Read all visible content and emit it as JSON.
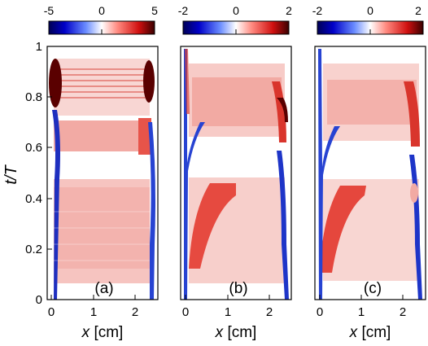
{
  "chart_data": [
    {
      "type": "heatmap",
      "label": "(a)",
      "xlabel_var": "x",
      "xlabel_unit": "[cm]",
      "ylabel": "t/T",
      "xlim": [
        0,
        2.5
      ],
      "ylim": [
        0,
        1
      ],
      "xticks": [
        "0",
        "1",
        "2"
      ],
      "yticks": [
        "0",
        "0.2",
        "0.4",
        "0.6",
        "0.8",
        "1"
      ],
      "colorbar": {
        "ticks": [
          "-5",
          "0",
          "5"
        ],
        "range": [
          -5,
          5
        ],
        "colormap": "seismic"
      },
      "features": [
        {
          "t": [
            0.72,
            0.96
          ],
          "x_left": 0.18,
          "x_right": 2.35,
          "peak": 5,
          "note": "strong edge oscillations"
        },
        {
          "t": [
            0.58,
            0.7
          ],
          "value": 2.5
        },
        {
          "t": [
            0.08,
            0.45
          ],
          "value": 2.0
        }
      ]
    },
    {
      "type": "heatmap",
      "label": "(b)",
      "xlabel_var": "x",
      "xlabel_unit": "[cm]",
      "xlim": [
        0,
        2.5
      ],
      "ylim": [
        0,
        1
      ],
      "xticks": [
        "0",
        "1",
        "2"
      ],
      "colorbar": {
        "ticks": [
          "-2",
          "0",
          "2"
        ],
        "range": [
          -2,
          2
        ],
        "colormap": "seismic"
      },
      "features": [
        {
          "t": [
            0.62,
            0.9
          ],
          "value": 1.2
        },
        {
          "t": [
            0.06,
            0.46
          ],
          "value": 1.0
        },
        {
          "t": [
            0.1,
            0.45
          ],
          "x": [
            0.2,
            1.0
          ],
          "value": 2.0,
          "note": "strong red band near left wall"
        },
        {
          "t": [
            0.6,
            0.82
          ],
          "x": [
            2.1,
            2.5
          ],
          "value": 2.0,
          "note": "strong red near right wall"
        }
      ]
    },
    {
      "type": "heatmap",
      "label": "(c)",
      "xlabel_var": "x",
      "xlabel_unit": "[cm]",
      "xlim": [
        0,
        2.5
      ],
      "ylim": [
        0,
        1
      ],
      "xticks": [
        "0",
        "1",
        "2"
      ],
      "colorbar": {
        "ticks": [
          "-2",
          "0",
          "2"
        ],
        "range": [
          -2,
          2
        ],
        "colormap": "seismic"
      },
      "features": [
        {
          "t": [
            0.62,
            0.9
          ],
          "value": 1.0
        },
        {
          "t": [
            0.06,
            0.46
          ],
          "value": 0.9
        },
        {
          "t": [
            0.1,
            0.45
          ],
          "x": [
            0.2,
            0.9
          ],
          "value": 2.0,
          "note": "strong red band near left wall"
        },
        {
          "t": [
            0.62,
            0.85
          ],
          "x": [
            2.1,
            2.5
          ],
          "value": 2.0,
          "note": "strong red near right wall"
        }
      ]
    }
  ],
  "colors": {
    "neg_strong": "#00008c",
    "neg": "#2a4cd8",
    "zero": "#ffffff",
    "pos": "#e8302a",
    "pos_strong": "#4d0000",
    "axis": "#000000"
  }
}
